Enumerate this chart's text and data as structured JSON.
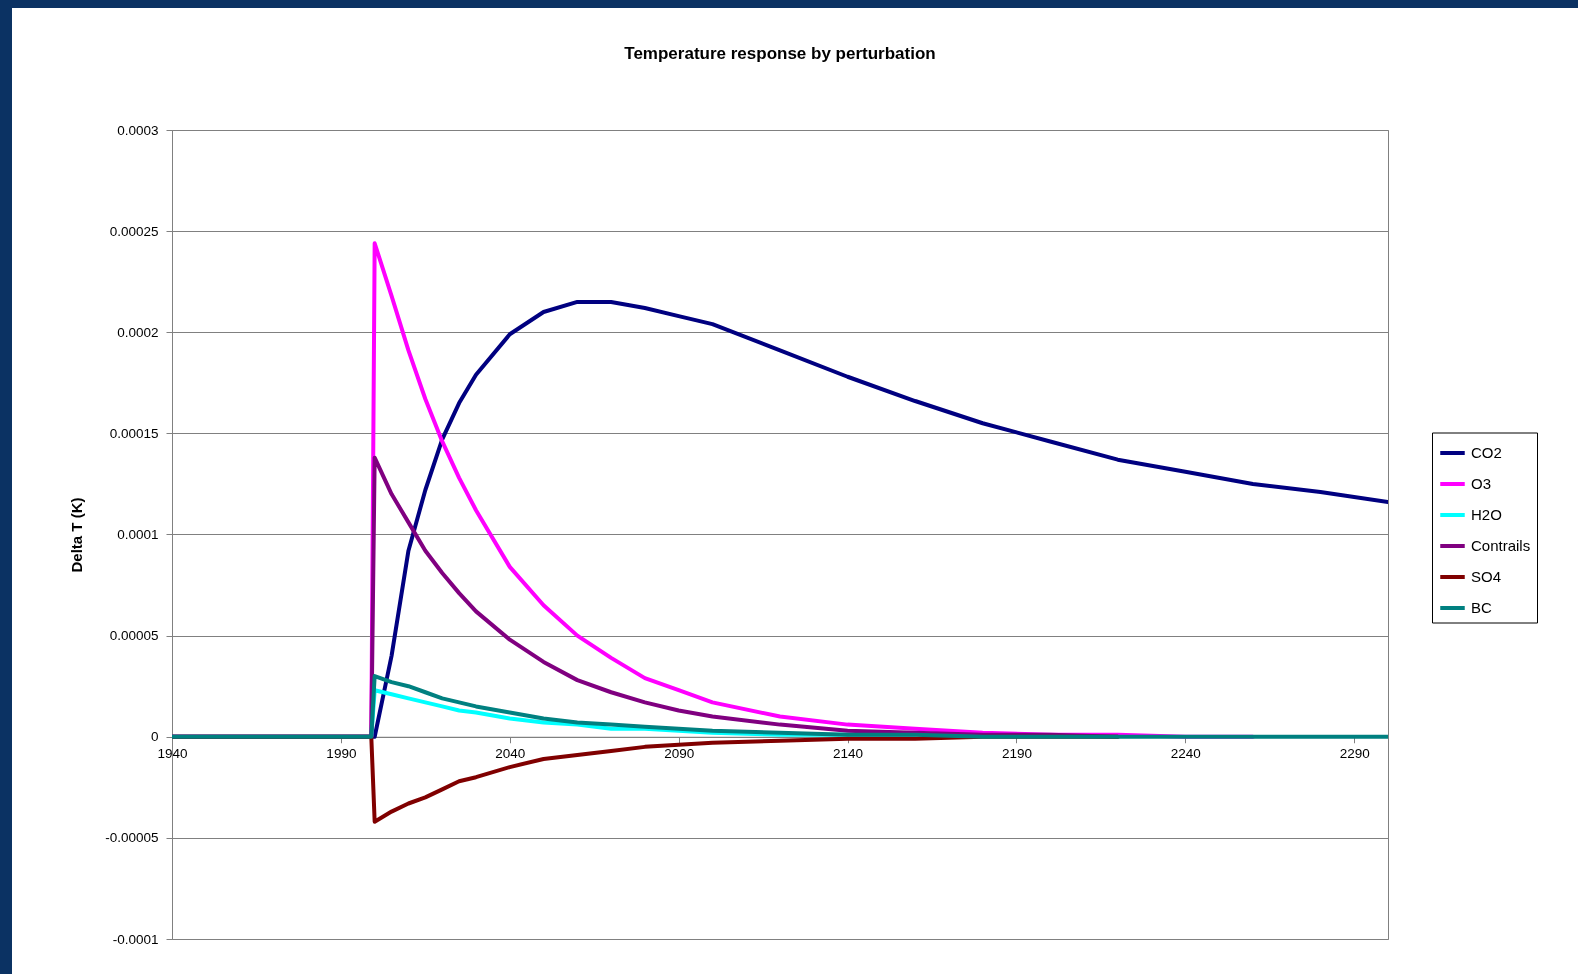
{
  "chart_data": {
    "type": "line",
    "title": "Temperature response by perturbation",
    "ylabel": "Delta T (K)",
    "x": [
      1940,
      1999,
      2000,
      2005,
      2010,
      2015,
      2020,
      2025,
      2030,
      2040,
      2050,
      2060,
      2070,
      2080,
      2090,
      2100,
      2120,
      2140,
      2160,
      2180,
      2200,
      2220,
      2240,
      2260,
      2280,
      2300
    ],
    "series": [
      {
        "name": "CO2",
        "color": "#000080",
        "values": [
          0,
          0,
          0,
          4e-05,
          9.2e-05,
          0.000122,
          0.000147,
          0.000165,
          0.000179,
          0.000199,
          0.00021,
          0.000215,
          0.000215,
          0.000212,
          0.000208,
          0.000204,
          0.000191,
          0.000178,
          0.000166,
          0.000155,
          0.000146,
          0.000137,
          0.000131,
          0.000125,
          0.000121,
          0.000116
        ]
      },
      {
        "name": "O3",
        "color": "#ff00ff",
        "values": [
          0,
          0,
          0.000244,
          0.000218,
          0.000191,
          0.000167,
          0.000146,
          0.000128,
          0.000112,
          8.4e-05,
          6.5e-05,
          5e-05,
          3.9e-05,
          2.9e-05,
          2.3e-05,
          1.7e-05,
          1e-05,
          6e-06,
          4e-06,
          2e-06,
          1e-06,
          1e-06,
          0,
          0,
          null,
          null
        ]
      },
      {
        "name": "H2O",
        "color": "#00ffff",
        "values": [
          0,
          0,
          2.3e-05,
          2.1e-05,
          1.9e-05,
          1.7e-05,
          1.5e-05,
          1.3e-05,
          1.2e-05,
          9e-06,
          7e-06,
          6e-06,
          4e-06,
          4e-06,
          3e-06,
          2e-06,
          1e-06,
          1e-06,
          1e-06,
          null,
          null,
          null,
          null,
          null,
          null,
          null
        ]
      },
      {
        "name": "Contrails",
        "color": "#800080",
        "values": [
          0,
          0,
          0.000138,
          0.00012,
          0.000106,
          9.2e-05,
          8.1e-05,
          7.1e-05,
          6.2e-05,
          4.8e-05,
          3.7e-05,
          2.8e-05,
          2.2e-05,
          1.7e-05,
          1.3e-05,
          1e-05,
          6e-06,
          3e-06,
          2e-06,
          1e-06,
          1e-06,
          0,
          null,
          null,
          null,
          null
        ]
      },
      {
        "name": "SO4",
        "color": "#800000",
        "values": [
          0,
          0,
          -4.2e-05,
          -3.7e-05,
          -3.3e-05,
          -3e-05,
          -2.6e-05,
          -2.2e-05,
          -2e-05,
          -1.5e-05,
          -1.1e-05,
          -9e-06,
          -7e-06,
          -5e-06,
          -4e-06,
          -3e-06,
          -2e-06,
          -1e-06,
          -1e-06,
          0,
          0,
          0,
          null,
          null,
          null,
          null
        ]
      },
      {
        "name": "BC",
        "color": "#008080",
        "values": [
          0,
          0,
          3e-05,
          2.7e-05,
          2.5e-05,
          2.2e-05,
          1.9e-05,
          1.7e-05,
          1.5e-05,
          1.2e-05,
          9e-06,
          7e-06,
          6e-06,
          5e-06,
          4e-06,
          3e-06,
          2e-06,
          1e-06,
          1e-06,
          0,
          0,
          0,
          0,
          0,
          0,
          0
        ]
      }
    ],
    "xlim": [
      1940,
      2300
    ],
    "xticks": [
      1940,
      1990,
      2040,
      2090,
      2140,
      2190,
      2240,
      2290
    ],
    "ylim": [
      -0.0001,
      0.0003
    ],
    "yticks": [
      -0.0001,
      {
        "value": -5e-05,
        "label": "-0.00005"
      },
      0,
      {
        "value": 5e-05,
        "label": "0.00005"
      },
      0.0001,
      0.00015,
      0.0002,
      0.00025,
      0.0003
    ],
    "grid": "y",
    "legend": "right",
    "line_style": "solid"
  }
}
